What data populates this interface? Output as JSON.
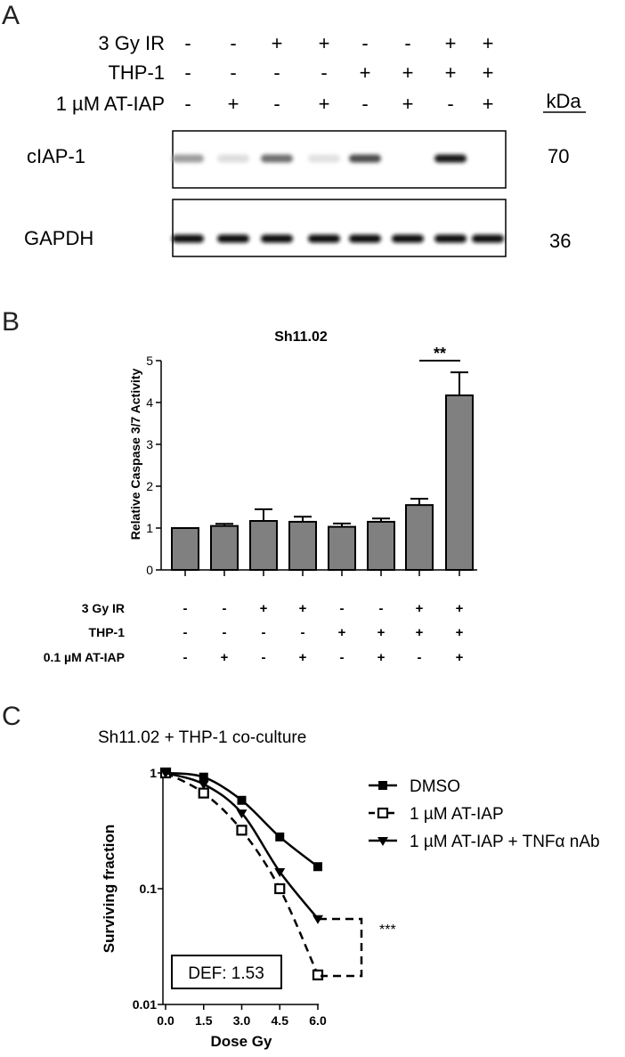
{
  "panel_a": {
    "label": "A",
    "rows": [
      {
        "name": "3 Gy IR",
        "signs": [
          "-",
          "-",
          "+",
          "+",
          "-",
          "-",
          "+",
          "+"
        ]
      },
      {
        "name": "THP-1",
        "signs": [
          "-",
          "-",
          "-",
          "-",
          "+",
          "+",
          "+",
          "+"
        ]
      },
      {
        "name": "1 µM AT-IAP",
        "signs": [
          "-",
          "+",
          "-",
          "+",
          "-",
          "+",
          "-",
          "+"
        ]
      }
    ],
    "kda_label": "kDa",
    "blots": [
      {
        "name": "cIAP-1",
        "kda": "70",
        "band_intensity": [
          0.35,
          0.06,
          0.55,
          0.04,
          0.7,
          0.0,
          0.95,
          0.0
        ]
      },
      {
        "name": "GAPDH",
        "kda": "36",
        "band_intensity": [
          1,
          1,
          1,
          1,
          1,
          1,
          1,
          1
        ]
      }
    ]
  },
  "panel_b": {
    "label": "B",
    "signs_rows": [
      {
        "name": "3 Gy IR",
        "signs": [
          "-",
          "-",
          "+",
          "+",
          "-",
          "-",
          "+",
          "+"
        ]
      },
      {
        "name": "THP-1",
        "signs": [
          "-",
          "-",
          "-",
          "-",
          "+",
          "+",
          "+",
          "+"
        ]
      },
      {
        "name": "0.1 µM AT-IAP",
        "signs": [
          "-",
          "+",
          "-",
          "+",
          "-",
          "+",
          "-",
          "+"
        ]
      }
    ]
  },
  "panel_c": {
    "label": "C",
    "subtitle": "Sh11.02 + THP-1 co-culture",
    "def_label": "DEF: 1.53",
    "significance": "***"
  },
  "chart_data": [
    {
      "type": "bar",
      "title": "Sh11.02",
      "ylabel": "Relative Caspase 3/7 Activity",
      "xlabel": "",
      "ylim": [
        0,
        5
      ],
      "yticks": [
        "0",
        "1",
        "2",
        "3",
        "4",
        "5"
      ],
      "values": [
        1.0,
        1.05,
        1.17,
        1.15,
        1.03,
        1.15,
        1.55,
        4.17
      ],
      "errors": [
        0.0,
        0.05,
        0.28,
        0.12,
        0.08,
        0.08,
        0.15,
        0.55
      ],
      "bar_color": "#808080",
      "annotations": [
        {
          "text": "**",
          "between_bars": [
            7,
            8
          ]
        }
      ],
      "grid": false
    },
    {
      "type": "line",
      "title": "",
      "xlabel": "Dose Gy",
      "ylabel": "Surviving fraction",
      "y_scale": "log",
      "ylim": [
        0.01,
        1
      ],
      "yticks": [
        "1",
        "0.1",
        "0.01"
      ],
      "xlim": [
        0,
        6
      ],
      "xticks": [
        "0.0",
        "1.5",
        "3.0",
        "4.5",
        "6.0"
      ],
      "legend_position": "top-right",
      "grid": false,
      "series": [
        {
          "name": "DMSO",
          "marker": "square-filled",
          "line": "solid",
          "x": [
            0,
            1.5,
            3.0,
            4.5,
            6.0
          ],
          "y": [
            1.0,
            0.92,
            0.58,
            0.28,
            0.155
          ]
        },
        {
          "name": "1 µM AT-IAP",
          "marker": "square-open",
          "line": "dashed",
          "x": [
            0,
            1.5,
            3.0,
            4.5,
            6.0
          ],
          "y": [
            1.0,
            0.67,
            0.32,
            0.1,
            0.018
          ]
        },
        {
          "name": "1 µM AT-IAP + TNFα nAb",
          "marker": "triangle-down-filled",
          "line": "solid",
          "x": [
            0,
            1.5,
            3.0,
            4.5,
            6.0
          ],
          "y": [
            1.0,
            0.8,
            0.45,
            0.14,
            0.055
          ]
        }
      ]
    }
  ]
}
